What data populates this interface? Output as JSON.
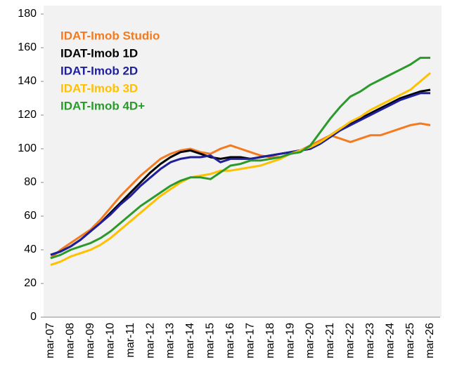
{
  "chart_data": {
    "type": "line",
    "categories": [
      "mar-07",
      null,
      "mar-08",
      null,
      "mar-09",
      null,
      "mar-10",
      null,
      "mar-11",
      null,
      "mar-12",
      null,
      "mar-13",
      null,
      "mar-14",
      null,
      "mar-15",
      null,
      "mar-16",
      null,
      "mar-17",
      null,
      "mar-18",
      null,
      "mar-19",
      null,
      "mar-20",
      null,
      "mar-21",
      null,
      "mar-22",
      null,
      "mar-23",
      null,
      "mar-24",
      null,
      "mar-25",
      null,
      "mar-26"
    ],
    "series": [
      {
        "name": "IDAT-Imob Studio",
        "color": "#f47a20",
        "values": [
          35,
          40,
          44,
          48,
          52,
          58,
          65,
          72,
          78,
          84,
          89,
          94,
          97,
          99,
          100,
          98,
          97,
          100,
          102,
          100,
          98,
          96,
          95,
          95,
          97,
          99,
          102,
          105,
          108,
          106,
          104,
          106,
          108,
          108,
          110,
          112,
          114,
          115,
          114
        ]
      },
      {
        "name": "IDAT-Imob 1D",
        "color": "#000000",
        "values": [
          37,
          39,
          42,
          46,
          51,
          56,
          62,
          68,
          74,
          80,
          86,
          91,
          95,
          98,
          99,
          97,
          95,
          94,
          95,
          95,
          94,
          95,
          96,
          97,
          98,
          99,
          100,
          104,
          108,
          112,
          115,
          118,
          121,
          124,
          127,
          130,
          132,
          134,
          135
        ]
      },
      {
        "name": "IDAT-Imob 2D",
        "color": "#1f1f9c",
        "values": [
          37,
          39,
          42,
          46,
          51,
          56,
          61,
          67,
          72,
          78,
          83,
          88,
          92,
          94,
          95,
          95,
          96,
          92,
          94,
          94,
          94,
          95,
          96,
          97,
          98,
          99,
          100,
          103,
          107,
          111,
          114,
          117,
          120,
          123,
          126,
          129,
          131,
          133,
          133
        ]
      },
      {
        "name": "IDAT-Imob 3D",
        "color": "#ffc000",
        "values": [
          31,
          33,
          36,
          38,
          40,
          43,
          47,
          52,
          57,
          62,
          67,
          72,
          76,
          80,
          83,
          84,
          85,
          87,
          87,
          88,
          89,
          90,
          92,
          94,
          97,
          99,
          101,
          104,
          108,
          112,
          116,
          119,
          123,
          126,
          129,
          132,
          135,
          140,
          145
        ]
      },
      {
        "name": "IDAT-Imob 4D+",
        "color": "#2a9a2a",
        "values": [
          35,
          37,
          40,
          42,
          44,
          47,
          51,
          56,
          61,
          66,
          70,
          74,
          78,
          81,
          83,
          83,
          82,
          86,
          90,
          91,
          93,
          93,
          94,
          95,
          97,
          98,
          102,
          110,
          118,
          125,
          131,
          134,
          138,
          141,
          144,
          147,
          150,
          154,
          154
        ]
      }
    ],
    "ylim": [
      0,
      180
    ],
    "yticks": [
      0,
      20,
      40,
      60,
      80,
      100,
      120,
      140,
      160,
      180
    ],
    "legend": "upper left"
  }
}
